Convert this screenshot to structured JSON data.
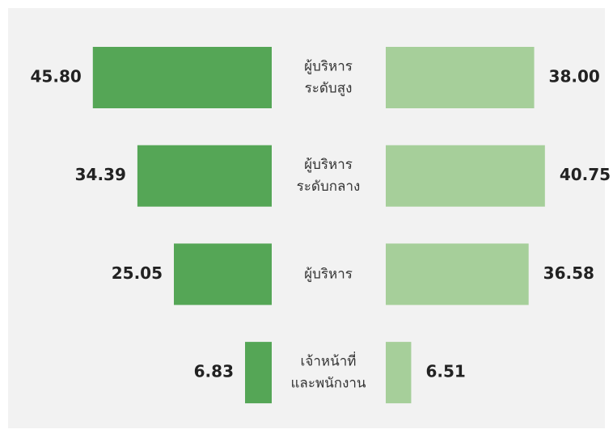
{
  "chart_data": {
    "type": "butterfly",
    "categories": [
      [
        "ผู้บริหาร",
        "ระดับสูง"
      ],
      [
        "ผู้บริหาร",
        "ระดับกลาง"
      ],
      [
        "ผู้บริหาร"
      ],
      [
        "เจ้าหน้าที่",
        "และพนักงาน"
      ]
    ],
    "series": [
      {
        "color": "#55a656",
        "values": [
          45.8,
          34.39,
          25.05,
          6.83
        ],
        "value_labels": [
          "45.80",
          "34.39",
          "25.05",
          "6.83"
        ]
      },
      {
        "color": "#a6cf9a",
        "values": [
          38,
          40.75,
          36.58,
          6.51
        ],
        "value_labels": [
          "38.00",
          "40.75",
          "36.58",
          "6.51"
        ]
      }
    ]
  }
}
